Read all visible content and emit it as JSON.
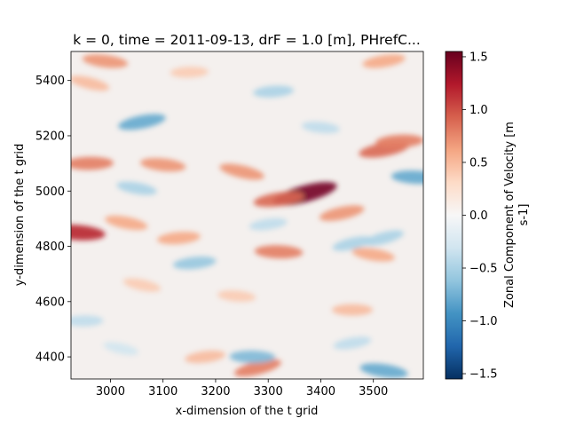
{
  "chart_data": {
    "type": "heatmap",
    "title": "k = 0, time = 2011-09-13, drF = 1.0 [m], PHrefC...",
    "xlabel": "x-dimension of the t grid",
    "ylabel": "y-dimension of the t grid",
    "xlim": [
      2925,
      3595
    ],
    "ylim": [
      4320,
      5505
    ],
    "xticks": [
      3000,
      3100,
      3200,
      3300,
      3400,
      3500
    ],
    "yticks": [
      4400,
      4600,
      4800,
      5000,
      5200,
      5400
    ],
    "colormap": "RdBu_r",
    "colorbar": {
      "label_line1": "Zonal Component of Velocity [m",
      "label_line2": "s-1]",
      "range": [
        -1.55,
        1.55
      ],
      "ticks": [
        -1.5,
        -1.0,
        -0.5,
        0.0,
        0.5,
        1.0,
        1.5
      ],
      "tick_labels": [
        "−1.5",
        "−1.0",
        "−0.5",
        "0.0",
        "0.5",
        "1.0",
        "1.5"
      ],
      "low_color": "#053061",
      "mid_color": "#f7f7f7",
      "high_color": "#67001f"
    },
    "features": [
      {
        "x": 3370,
        "y": 4990,
        "value": 1.5
      },
      {
        "x": 3320,
        "y": 4970,
        "value": 0.9
      },
      {
        "x": 2960,
        "y": 5100,
        "value": 0.8
      },
      {
        "x": 3100,
        "y": 5095,
        "value": 0.7
      },
      {
        "x": 3250,
        "y": 5070,
        "value": 0.7
      },
      {
        "x": 3520,
        "y": 5150,
        "value": 0.9
      },
      {
        "x": 3550,
        "y": 5180,
        "value": 0.8
      },
      {
        "x": 2935,
        "y": 4850,
        "value": 1.2
      },
      {
        "x": 3030,
        "y": 4885,
        "value": 0.6
      },
      {
        "x": 3440,
        "y": 4920,
        "value": 0.7
      },
      {
        "x": 3130,
        "y": 4830,
        "value": 0.6
      },
      {
        "x": 3320,
        "y": 4780,
        "value": 0.8
      },
      {
        "x": 3500,
        "y": 4770,
        "value": 0.6
      },
      {
        "x": 3280,
        "y": 4360,
        "value": 0.8
      },
      {
        "x": 3180,
        "y": 4400,
        "value": 0.5
      },
      {
        "x": 3460,
        "y": 4570,
        "value": 0.5
      },
      {
        "x": 2990,
        "y": 5470,
        "value": 0.7
      },
      {
        "x": 2960,
        "y": 5390,
        "value": 0.5
      },
      {
        "x": 3520,
        "y": 5470,
        "value": 0.6
      },
      {
        "x": 3150,
        "y": 5430,
        "value": 0.4
      },
      {
        "x": 3240,
        "y": 4620,
        "value": 0.4
      },
      {
        "x": 3060,
        "y": 4660,
        "value": 0.4
      },
      {
        "x": 3060,
        "y": 5250,
        "value": -0.8
      },
      {
        "x": 3310,
        "y": 5360,
        "value": -0.5
      },
      {
        "x": 3580,
        "y": 5050,
        "value": -0.8
      },
      {
        "x": 3050,
        "y": 5010,
        "value": -0.5
      },
      {
        "x": 3460,
        "y": 4810,
        "value": -0.5
      },
      {
        "x": 3160,
        "y": 4740,
        "value": -0.6
      },
      {
        "x": 3270,
        "y": 4400,
        "value": -0.7
      },
      {
        "x": 3520,
        "y": 4350,
        "value": -0.8
      },
      {
        "x": 3520,
        "y": 4830,
        "value": -0.5
      },
      {
        "x": 3300,
        "y": 4880,
        "value": -0.4
      },
      {
        "x": 2950,
        "y": 4530,
        "value": -0.4
      },
      {
        "x": 3400,
        "y": 5230,
        "value": -0.4
      },
      {
        "x": 3020,
        "y": 4430,
        "value": -0.3
      },
      {
        "x": 3460,
        "y": 4450,
        "value": -0.4
      }
    ]
  }
}
